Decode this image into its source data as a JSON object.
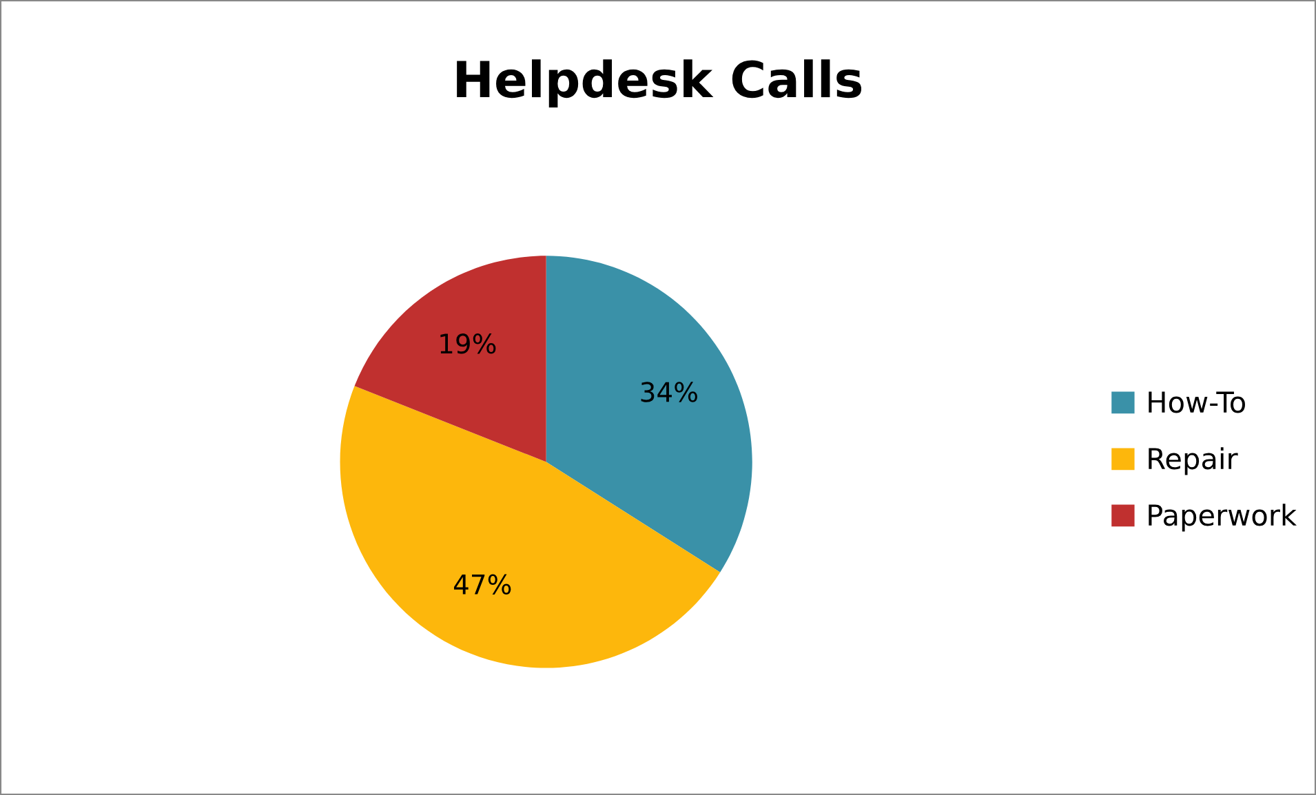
{
  "chart_data": {
    "type": "pie",
    "title": "Helpdesk Calls",
    "categories": [
      "How-To",
      "Repair",
      "Paperwork"
    ],
    "values": [
      34,
      47,
      19
    ],
    "value_labels": [
      "34%",
      "47%",
      "19%"
    ],
    "colors": [
      "#3a91a8",
      "#fdb70c",
      "#c0302f"
    ],
    "legend": "right"
  }
}
